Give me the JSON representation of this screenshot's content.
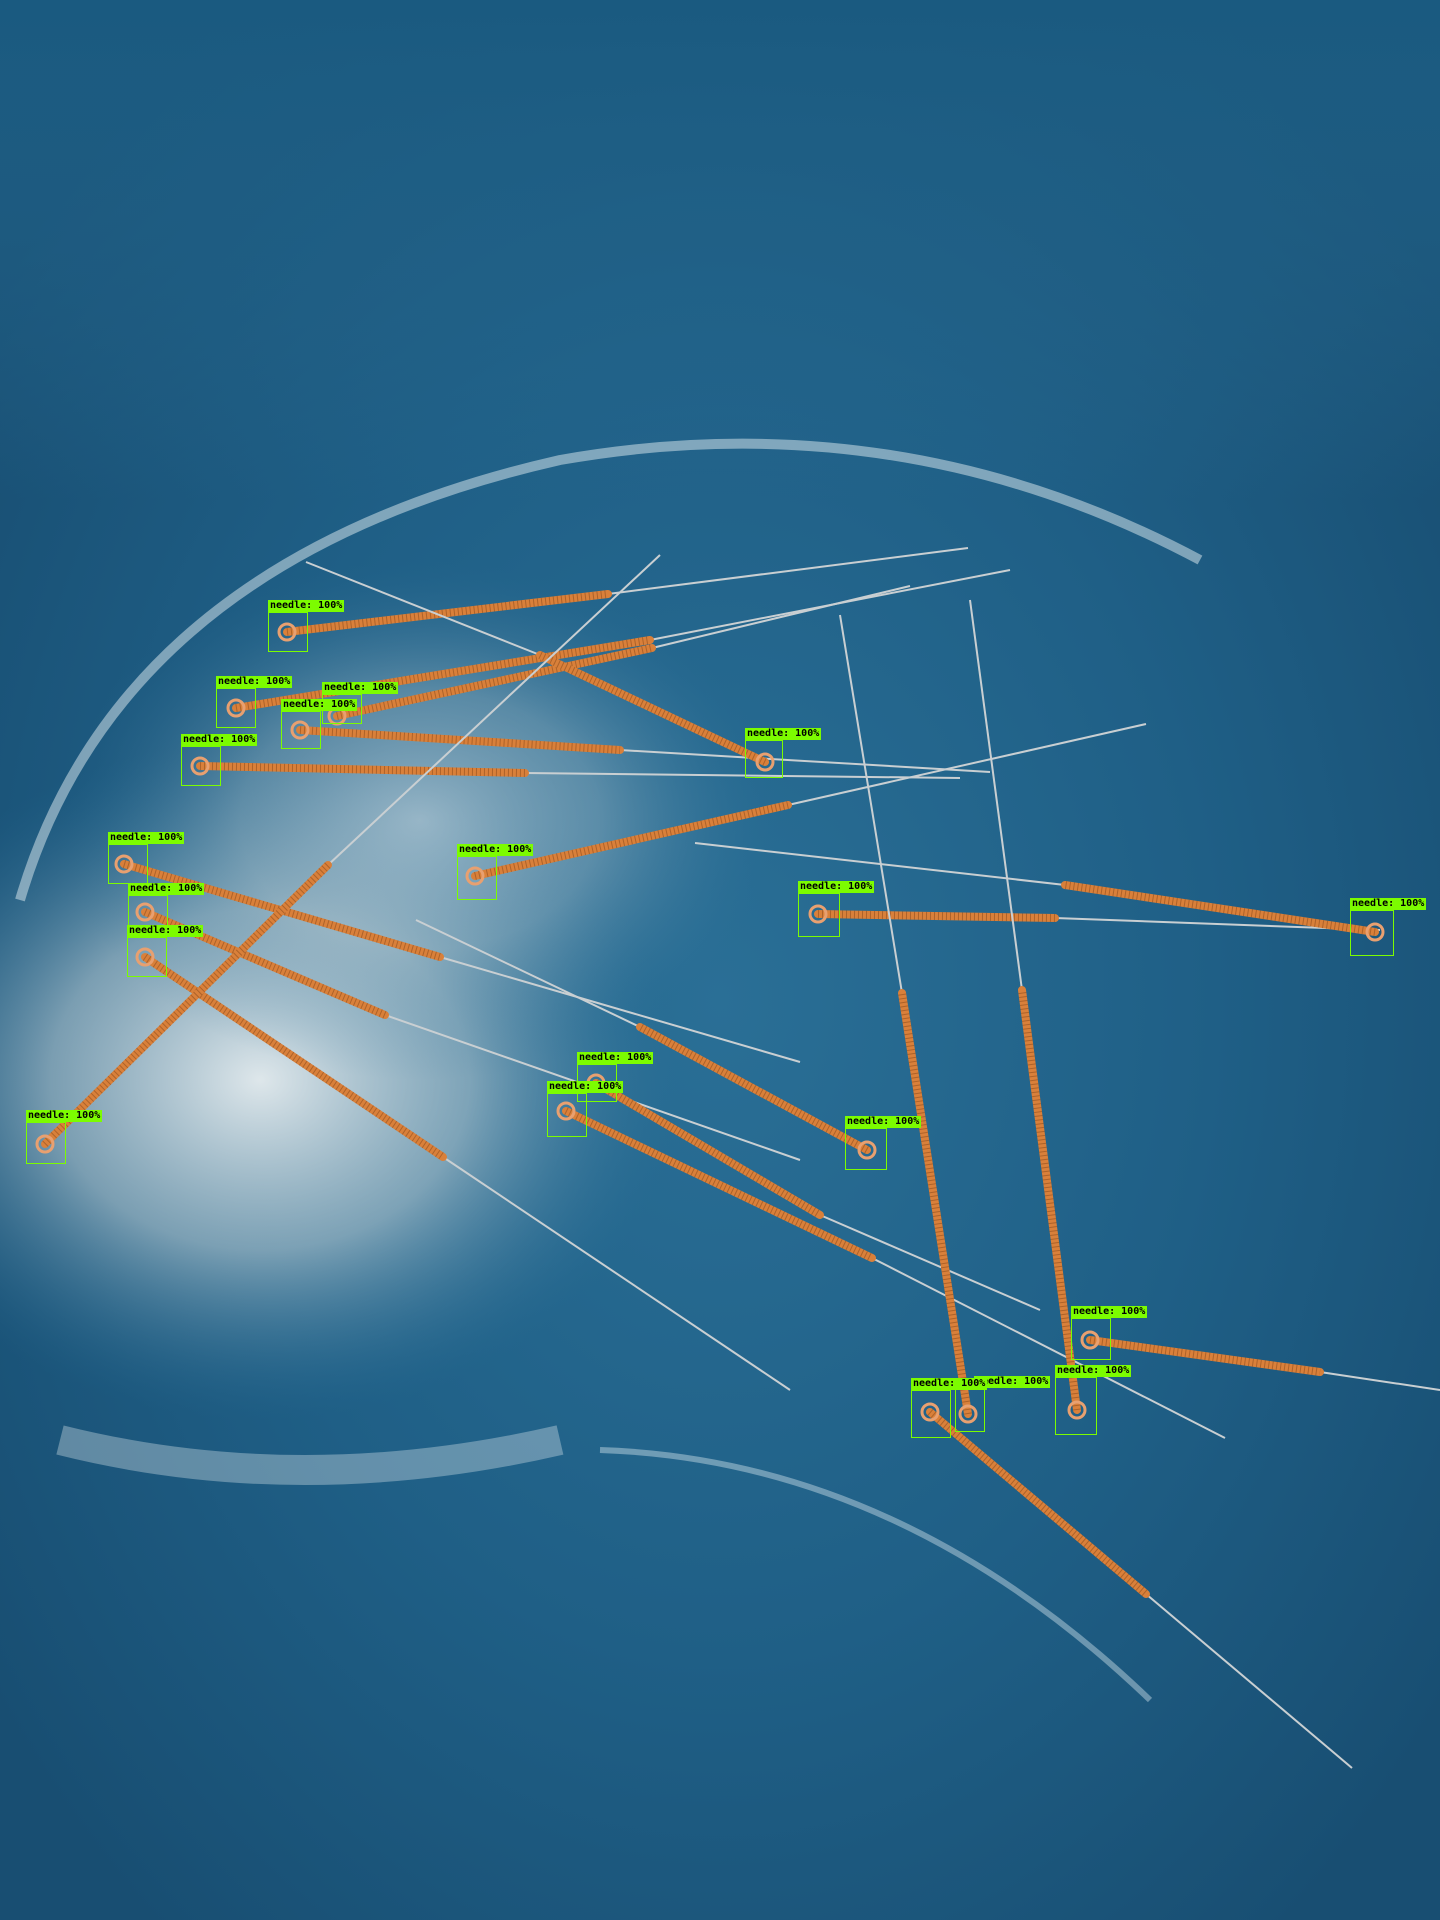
{
  "image": {
    "subject": "acupuncture needles on a blue tray",
    "background_color": "#1f5f86",
    "needle_handle_color": "#d9803a",
    "box_color": "#7CFC00"
  },
  "detections": [
    {
      "label": "needle: 100%"
    },
    {
      "label": "needle: 100%"
    },
    {
      "label": "needle: 100%"
    },
    {
      "label": "needle: 100%"
    },
    {
      "label": "needle: 100%"
    },
    {
      "label": "needle: 100%"
    },
    {
      "label": "needle: 100%"
    },
    {
      "label": "needle: 100%"
    },
    {
      "label": "needle: 100%"
    },
    {
      "label": "needle: 100%"
    },
    {
      "label": "needle: 100%"
    },
    {
      "label": "needle: 100%"
    },
    {
      "label": "needle: 100%"
    },
    {
      "label": "needle: 100%"
    },
    {
      "label": "needle: 100%"
    },
    {
      "label": "needle: 100%"
    },
    {
      "label": "needle: 100%"
    },
    {
      "label": "needle: 100%"
    },
    {
      "label": "needle: 100%"
    },
    {
      "label": "needle: 100%"
    },
    {
      "label": "needle: 100%"
    }
  ]
}
